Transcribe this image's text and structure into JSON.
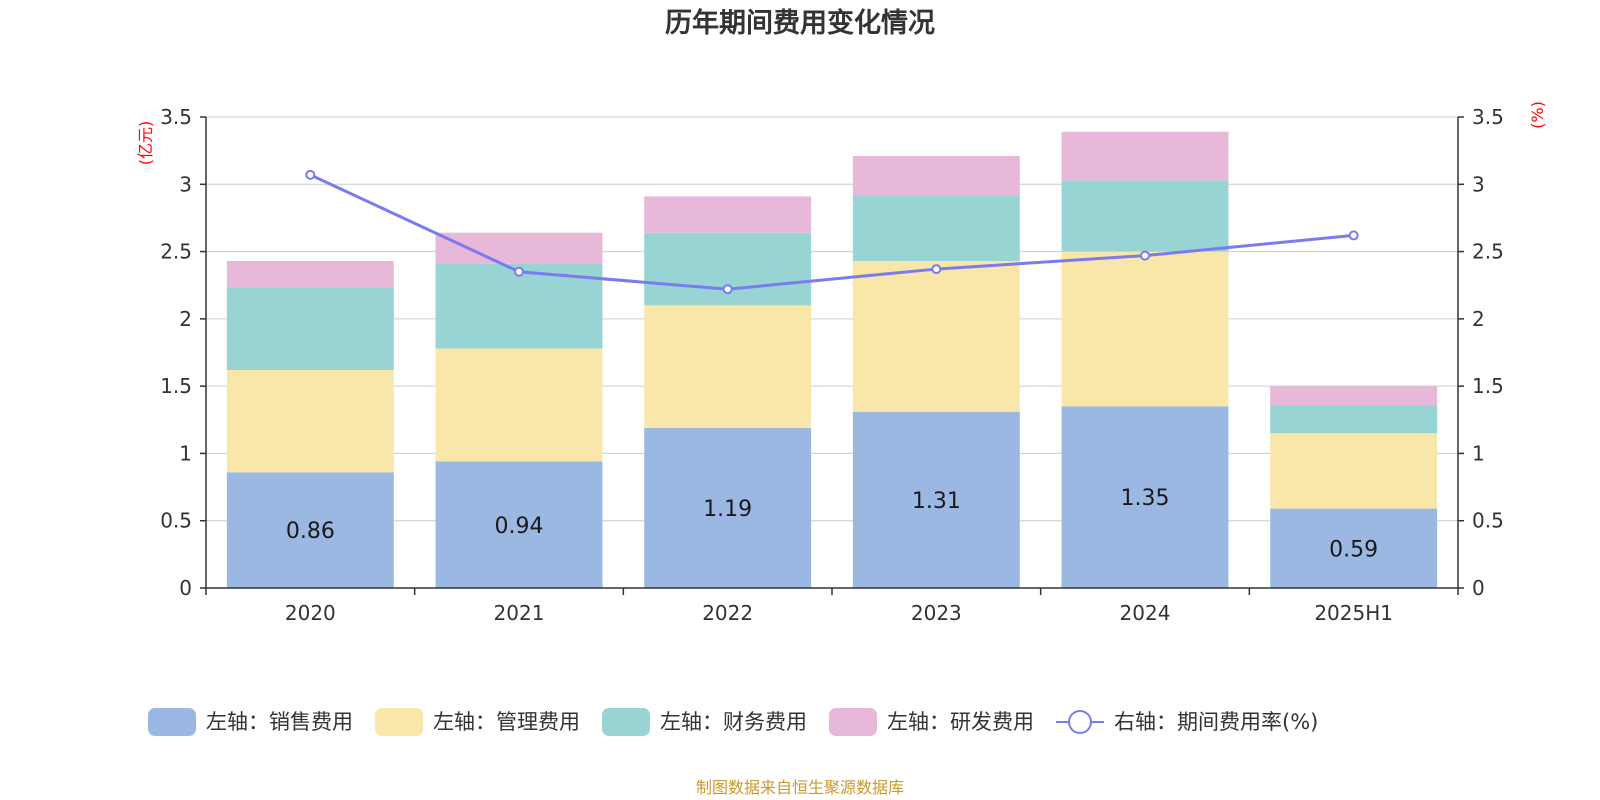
{
  "chart_data": {
    "type": "bar",
    "title": "历年期间费用变化情况",
    "categories": [
      "2020",
      "2021",
      "2022",
      "2023",
      "2024",
      "2025H1"
    ],
    "left_axis": {
      "unit": "(亿元)",
      "ylim": [
        0,
        3.5
      ],
      "ticks": [
        "0",
        "0.5",
        "1",
        "1.5",
        "2",
        "2.5",
        "3",
        "3.5"
      ]
    },
    "right_axis": {
      "unit": "(%)",
      "ylim": [
        0,
        3.5
      ],
      "ticks": [
        "0",
        "0.5",
        "1",
        "1.5",
        "2",
        "2.5",
        "3",
        "3.5"
      ]
    },
    "stacked": true,
    "grid": true,
    "legend_position": "bottom",
    "series": [
      {
        "name": "左轴：销售费用",
        "axis": "left",
        "kind": "bar",
        "color": "#9bb8e2",
        "values": [
          0.86,
          0.94,
          1.19,
          1.31,
          1.35,
          0.59
        ],
        "labels": [
          "0.86",
          "0.94",
          "1.19",
          "1.31",
          "1.35",
          "0.59"
        ]
      },
      {
        "name": "左轴：管理费用",
        "axis": "left",
        "kind": "bar",
        "color": "#f8e7a8",
        "values": [
          0.76,
          0.84,
          0.91,
          1.12,
          1.15,
          0.56
        ]
      },
      {
        "name": "左轴：财务费用",
        "axis": "left",
        "kind": "bar",
        "color": "#98d4d4",
        "values": [
          0.61,
          0.63,
          0.54,
          0.49,
          0.53,
          0.21
        ]
      },
      {
        "name": "左轴：研发费用",
        "axis": "left",
        "kind": "bar",
        "color": "#e8b8d8",
        "values": [
          0.2,
          0.23,
          0.27,
          0.29,
          0.36,
          0.14
        ]
      },
      {
        "name": "右轴：期间费用率(%)",
        "axis": "right",
        "kind": "line",
        "color": "#7b7bef",
        "values": [
          3.07,
          2.35,
          2.22,
          2.37,
          2.47,
          2.62
        ]
      }
    ]
  },
  "source_note": "制图数据来自恒生聚源数据库"
}
